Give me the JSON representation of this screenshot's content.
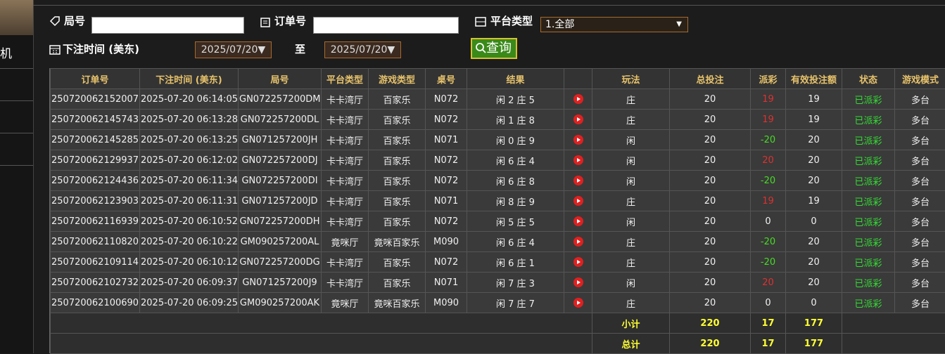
{
  "sidebar": {
    "item": "机"
  },
  "filters": {
    "round_label": "局号",
    "order_label": "订单号",
    "platform_label": "平台类型",
    "platform_value": "1.全部",
    "time_label": "下注时间 (美东)",
    "date_from": "2025/07/20▼",
    "to_label": "至",
    "date_to": "2025/07/20▼",
    "search_button": "查询"
  },
  "table": {
    "headers": [
      "订单号",
      "下注时间 (美东)",
      "局号",
      "平台类型",
      "游戏类型",
      "桌号",
      "结果",
      "玩法",
      "总投注",
      "派彩",
      "有效投注额",
      "状态",
      "游戏模式"
    ],
    "rows": [
      [
        "250720062152007",
        "2025-07-20 06:14:05",
        "GN072257200DM",
        "卡卡湾厅",
        "百家乐",
        "N072",
        "闲 2 庄 5",
        "庄",
        "20",
        "19",
        "19",
        "已派彩",
        "多台"
      ],
      [
        "250720062145743",
        "2025-07-20 06:13:28",
        "GN072257200DL",
        "卡卡湾厅",
        "百家乐",
        "N072",
        "闲 1 庄 8",
        "庄",
        "20",
        "19",
        "19",
        "已派彩",
        "多台"
      ],
      [
        "250720062145285",
        "2025-07-20 06:13:25",
        "GN071257200JH",
        "卡卡湾厅",
        "百家乐",
        "N071",
        "闲 0 庄 9",
        "闲",
        "20",
        "-20",
        "20",
        "已派彩",
        "多台"
      ],
      [
        "250720062129937",
        "2025-07-20 06:12:02",
        "GN072257200DJ",
        "卡卡湾厅",
        "百家乐",
        "N072",
        "闲 6 庄 4",
        "闲",
        "20",
        "20",
        "20",
        "已派彩",
        "多台"
      ],
      [
        "250720062124436",
        "2025-07-20 06:11:34",
        "GN072257200DI",
        "卡卡湾厅",
        "百家乐",
        "N072",
        "闲 6 庄 8",
        "闲",
        "20",
        "-20",
        "20",
        "已派彩",
        "多台"
      ],
      [
        "250720062123903",
        "2025-07-20 06:11:31",
        "GN071257200JD",
        "卡卡湾厅",
        "百家乐",
        "N071",
        "闲 8 庄 9",
        "庄",
        "20",
        "19",
        "19",
        "已派彩",
        "多台"
      ],
      [
        "250720062116939",
        "2025-07-20 06:10:52",
        "GN072257200DH",
        "卡卡湾厅",
        "百家乐",
        "N072",
        "闲 5 庄 5",
        "闲",
        "20",
        "0",
        "0",
        "已派彩",
        "多台"
      ],
      [
        "250720062110820",
        "2025-07-20 06:10:22",
        "GM090257200AL",
        "竟咪厅",
        "竟咪百家乐",
        "M090",
        "闲 6 庄 4",
        "庄",
        "20",
        "-20",
        "20",
        "已派彩",
        "多台"
      ],
      [
        "250720062109114",
        "2025-07-20 06:10:12",
        "GN072257200DG",
        "卡卡湾厅",
        "百家乐",
        "N072",
        "闲 6 庄 1",
        "庄",
        "20",
        "-20",
        "20",
        "已派彩",
        "多台"
      ],
      [
        "250720062102732",
        "2025-07-20 06:09:37",
        "GN071257200J9",
        "卡卡湾厅",
        "百家乐",
        "N071",
        "闲 7 庄 3",
        "闲",
        "20",
        "20",
        "20",
        "已派彩",
        "多台"
      ],
      [
        "250720062100690",
        "2025-07-20 06:09:25",
        "GM090257200AK",
        "竟咪厅",
        "竟咪百家乐",
        "M090",
        "闲 7 庄 7",
        "庄",
        "20",
        "0",
        "0",
        "已派彩",
        "多台"
      ]
    ],
    "summary": [
      {
        "label": "小计",
        "total_bet": "220",
        "payout": "17",
        "valid_bet": "177"
      },
      {
        "label": "总计",
        "total_bet": "220",
        "payout": "17",
        "valid_bet": "177"
      }
    ]
  }
}
